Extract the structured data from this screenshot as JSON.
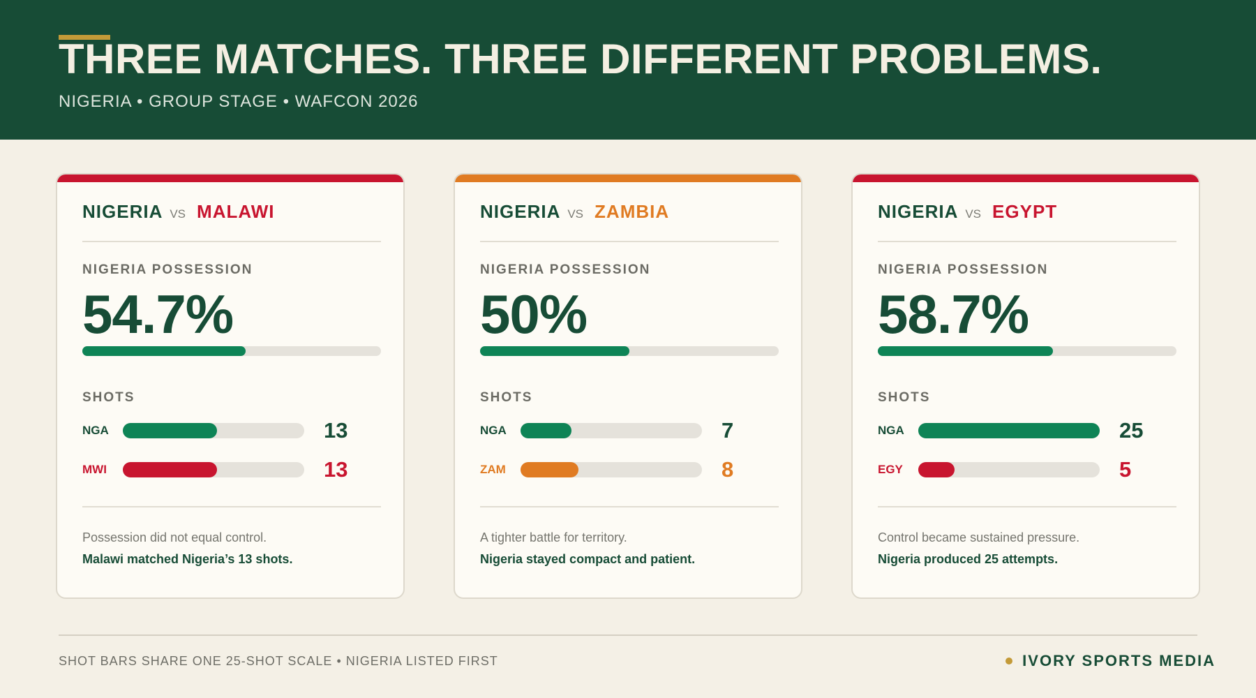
{
  "header": {
    "title": "THREE MATCHES. THREE DIFFERENT PROBLEMS.",
    "subtitle": "NIGERIA • GROUP STAGE • WAFCON 2026",
    "accent_color": "#c39a38",
    "background_color": "#174c36"
  },
  "chart_data": [
    {
      "type": "bar",
      "match": {
        "home": "NIGERIA",
        "vs": "VS",
        "away": "MALAWI"
      },
      "accent_color": "#c8152f",
      "possession": {
        "label": "NIGERIA POSSESSION",
        "value": 54.7,
        "display": "54.7%",
        "max": 100
      },
      "shots": {
        "label": "SHOTS",
        "scale_max": 25,
        "rows": [
          {
            "code": "NGA",
            "value": 13,
            "color": "#0e8456"
          },
          {
            "code": "MWI",
            "value": 13,
            "color": "#c8152f"
          }
        ]
      },
      "note": "Possession did not equal control.",
      "note_bold": "Malawi matched Nigeria’s 13 shots."
    },
    {
      "type": "bar",
      "match": {
        "home": "NIGERIA",
        "vs": "VS",
        "away": "ZAMBIA"
      },
      "accent_color": "#e07b22",
      "possession": {
        "label": "NIGERIA POSSESSION",
        "value": 50,
        "display": "50%",
        "max": 100
      },
      "shots": {
        "label": "SHOTS",
        "scale_max": 25,
        "rows": [
          {
            "code": "NGA",
            "value": 7,
            "color": "#0e8456"
          },
          {
            "code": "ZAM",
            "value": 8,
            "color": "#e07b22"
          }
        ]
      },
      "note": "A tighter battle for territory.",
      "note_bold": "Nigeria stayed compact and patient."
    },
    {
      "type": "bar",
      "match": {
        "home": "NIGERIA",
        "vs": "VS",
        "away": "EGYPT"
      },
      "accent_color": "#c8152f",
      "possession": {
        "label": "NIGERIA POSSESSION",
        "value": 58.7,
        "display": "58.7%",
        "max": 100
      },
      "shots": {
        "label": "SHOTS",
        "scale_max": 25,
        "rows": [
          {
            "code": "NGA",
            "value": 25,
            "color": "#0e8456"
          },
          {
            "code": "EGY",
            "value": 5,
            "color": "#c8152f"
          }
        ]
      },
      "note": "Control became sustained pressure.",
      "note_bold": "Nigeria produced 25 attempts."
    }
  ],
  "footer": {
    "note": "SHOT BARS SHARE ONE 25-SHOT SCALE • NIGERIA LISTED FIRST",
    "brand": "IVORY SPORTS MEDIA"
  },
  "colors": {
    "nigeria_green": "#174c36",
    "bar_green": "#0e8456",
    "track": "#e5e2db"
  }
}
